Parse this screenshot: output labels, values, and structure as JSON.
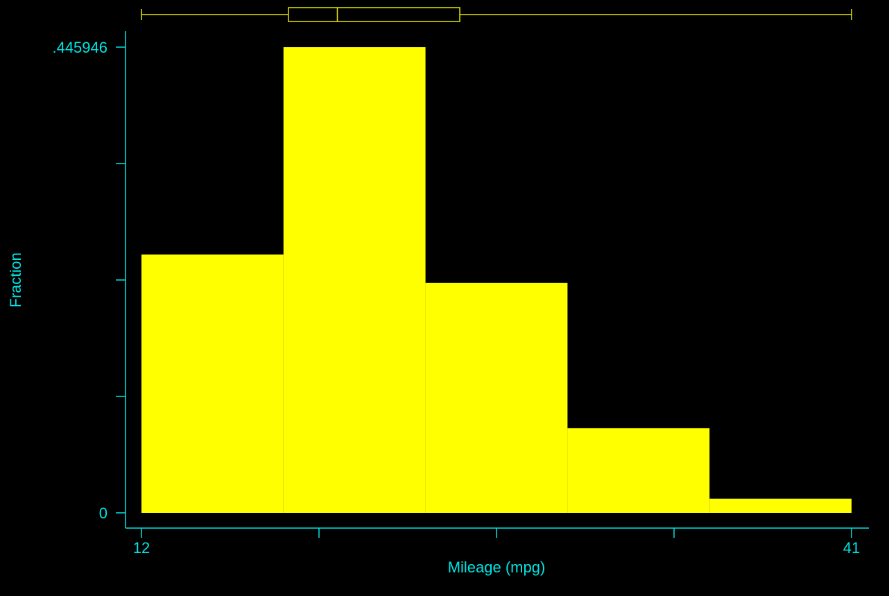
{
  "chart_data": {
    "type": "bar",
    "histogram": true,
    "bin_edges": [
      12,
      17.8,
      23.6,
      29.4,
      35.2,
      41
    ],
    "values": [
      0.2473,
      0.4459,
      0.2203,
      0.081,
      0.0135
    ],
    "xlabel": "Mileage (mpg)",
    "ylabel": "Fraction",
    "xlim": [
      12,
      41
    ],
    "ylim": [
      0,
      0.445946
    ],
    "x_tick_labels": [
      "12",
      "41"
    ],
    "x_minor_ticks": [
      19.25,
      26.5,
      33.75
    ],
    "y_tick_labels": [
      "0",
      ".445946"
    ],
    "y_minor_ticks": [
      0.111487,
      0.222973,
      0.33446
    ],
    "boxplot": {
      "min": 12,
      "q1": 18,
      "median": 20,
      "q3": 25,
      "max": 41
    },
    "grid": false,
    "legend": "none",
    "colors": {
      "background": "#000000",
      "bars": "#ffff00",
      "axes": "#00e5e5",
      "boxplot": "#e6e600"
    }
  }
}
